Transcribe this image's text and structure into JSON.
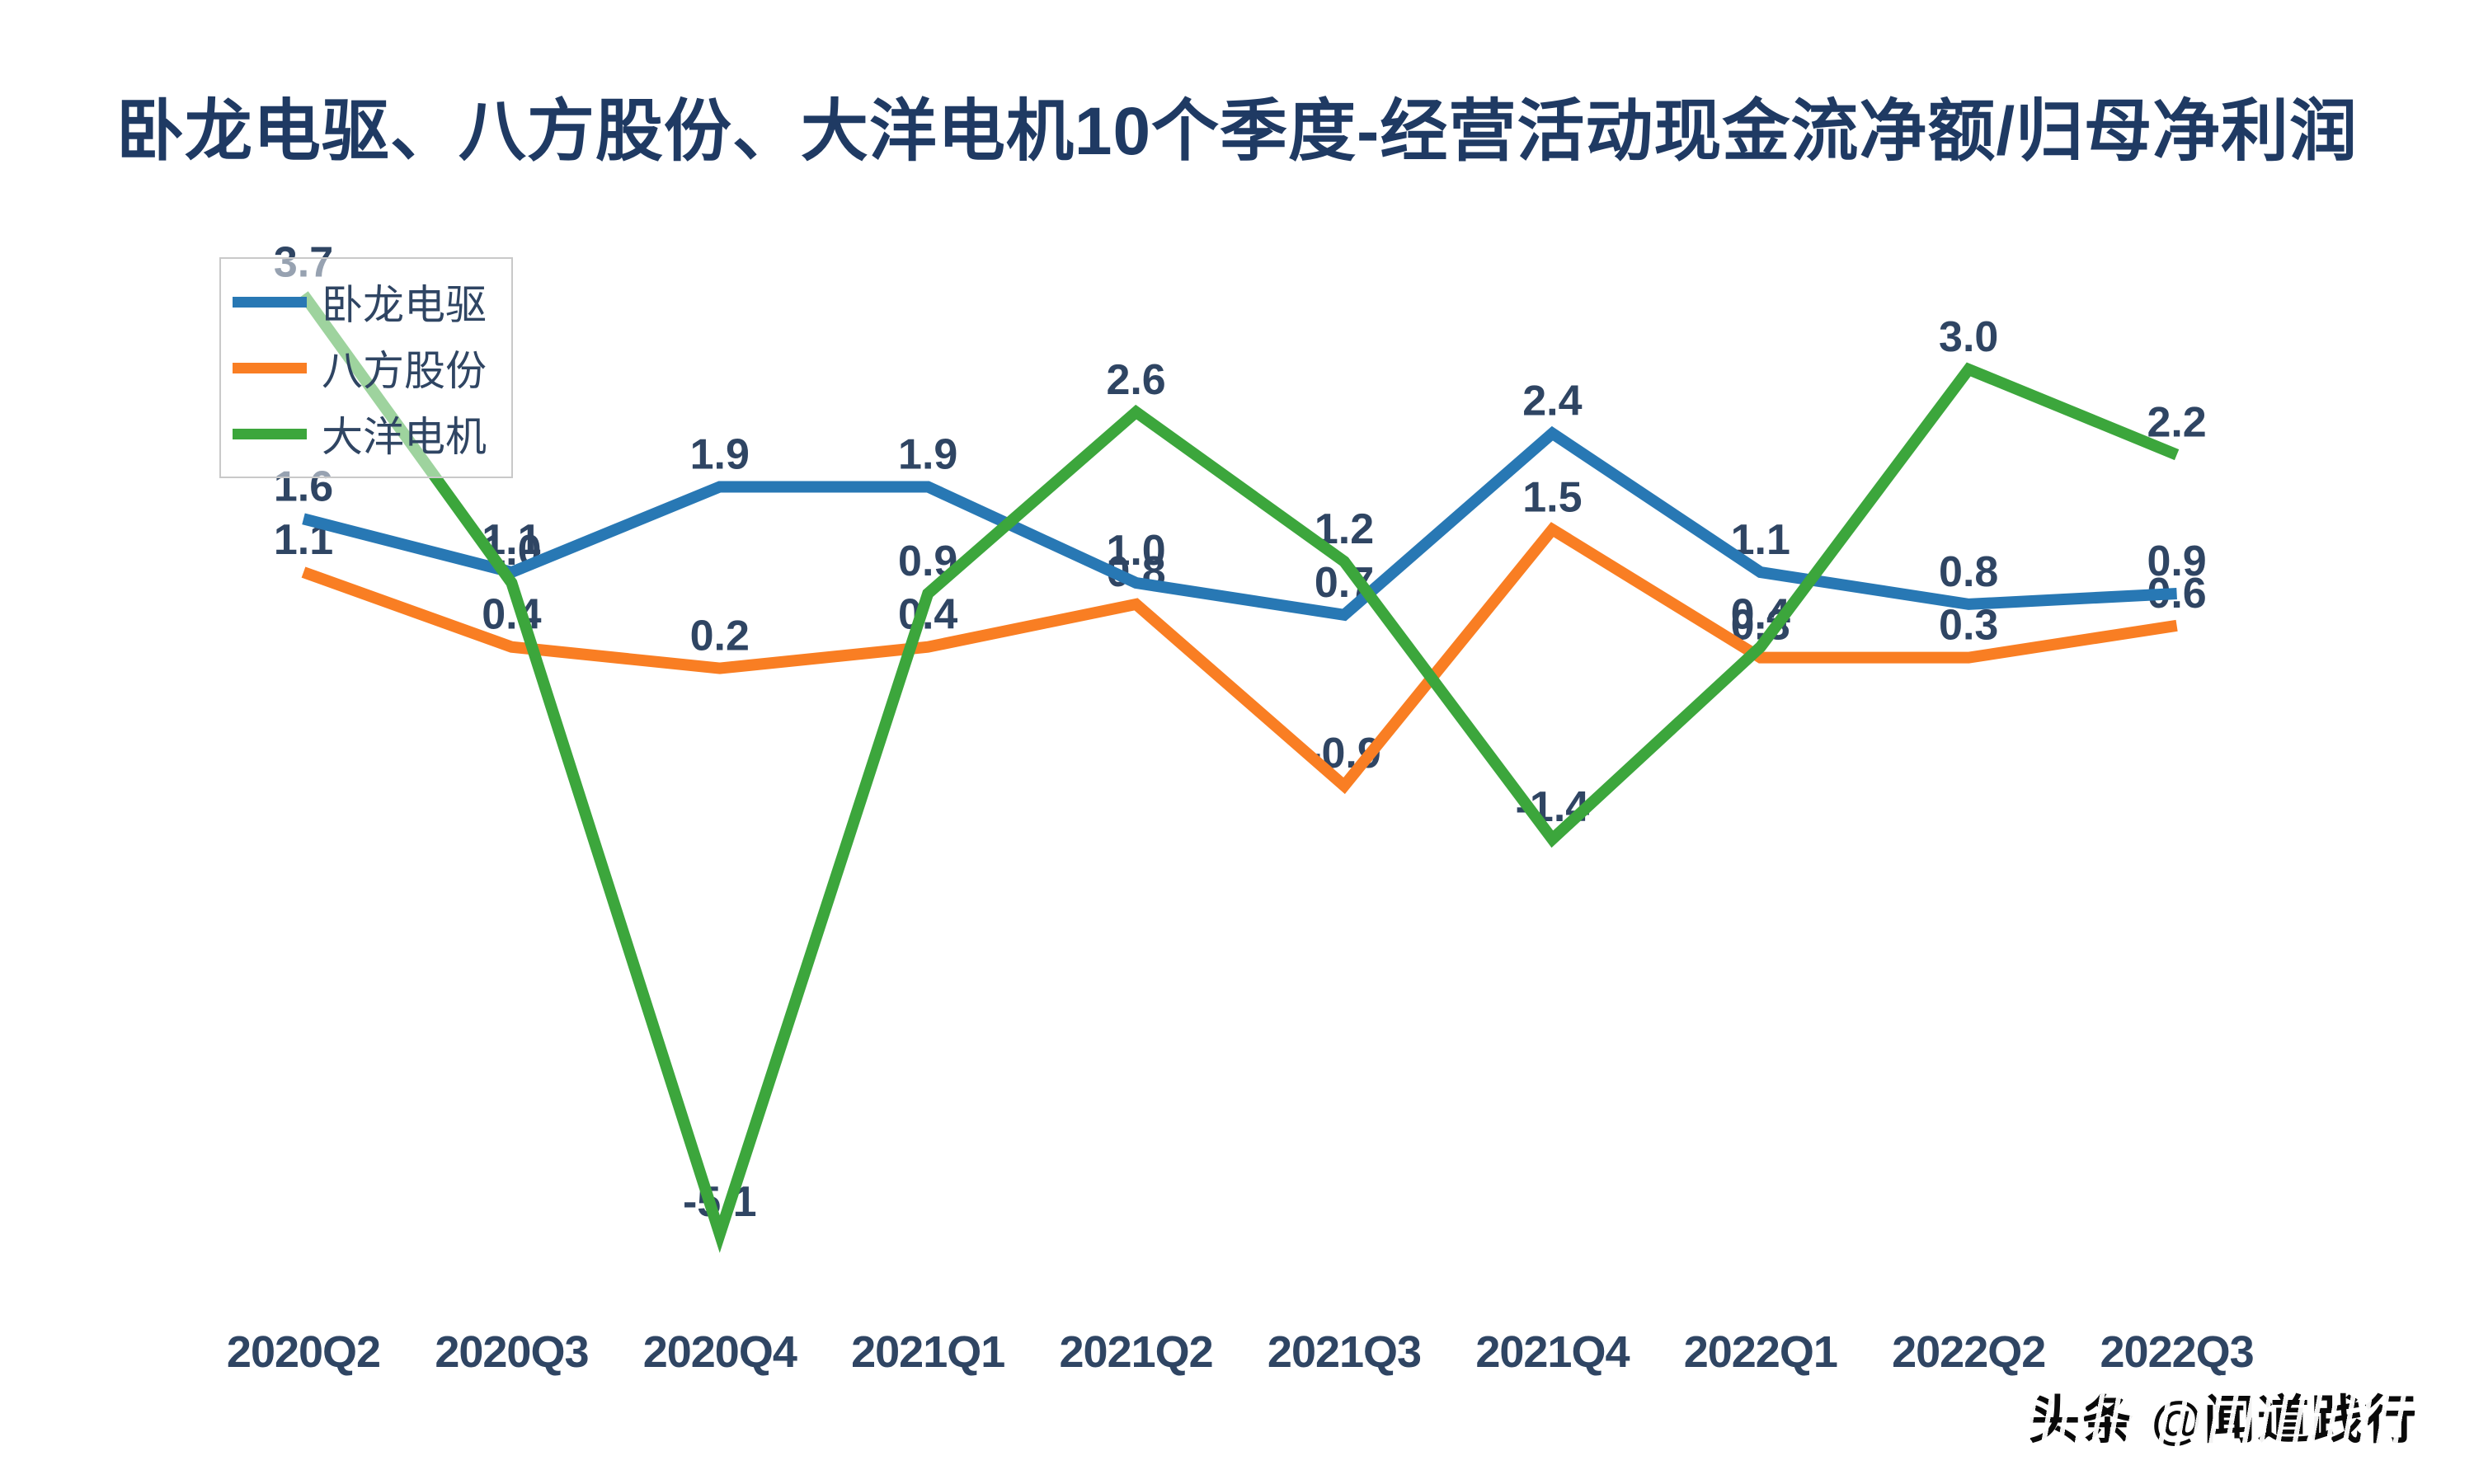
{
  "watermark": {
    "text": "头条 @闻道践行"
  },
  "chart_data": {
    "type": "line",
    "title": "卧龙电驱、八方股份、大洋电机10个季度-经营活动现金流净额/归母净利润",
    "categories": [
      "2020Q2",
      "2020Q3",
      "2020Q4",
      "2021Q1",
      "2021Q2",
      "2021Q3",
      "2021Q4",
      "2022Q1",
      "2022Q2",
      "2022Q3"
    ],
    "series": [
      {
        "name": "卧龙电驱",
        "color": "#2878B4",
        "values": [
          1.6,
          1.1,
          1.9,
          1.9,
          1.0,
          0.7,
          2.4,
          1.1,
          0.8,
          0.9
        ]
      },
      {
        "name": "八方股份",
        "color": "#F97E23",
        "values": [
          1.1,
          0.4,
          0.2,
          0.4,
          0.8,
          -0.9,
          1.5,
          0.3,
          0.3,
          0.6
        ]
      },
      {
        "name": "大洋电机",
        "color": "#3CA63C",
        "values": [
          3.7,
          1.0,
          -5.1,
          0.9,
          2.6,
          1.2,
          -1.4,
          0.4,
          3.0,
          2.2
        ]
      }
    ],
    "data_labels": true,
    "grid": false,
    "legend_position": "top-left",
    "ylim": [
      -5.6,
      4.1
    ],
    "label_color": "#2F4563",
    "axis_label_color": "#2F4563",
    "title_color": "#1F3A63"
  }
}
